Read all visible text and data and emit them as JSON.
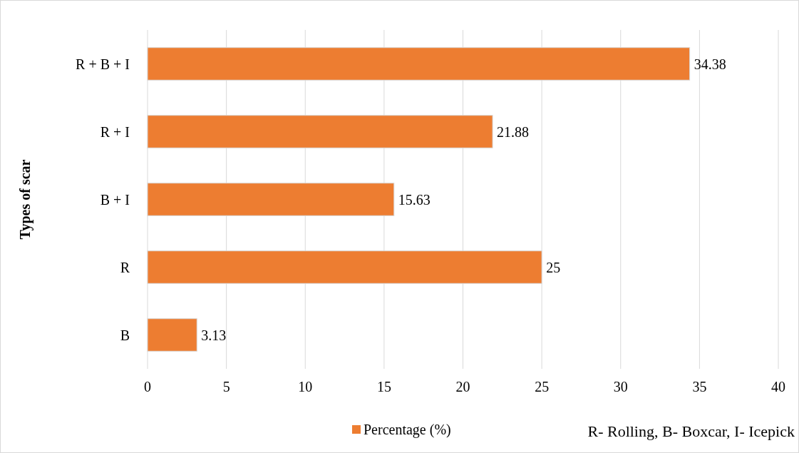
{
  "chart_data": {
    "type": "bar",
    "orientation": "horizontal",
    "ylabel": "Types of scar",
    "categories": [
      "R + B + I",
      "R + I",
      "B + I",
      "R",
      "B"
    ],
    "series": [
      {
        "name": "Percentage (%)",
        "color": "#ed7d31",
        "values": [
          34.38,
          21.88,
          15.63,
          25,
          3.13
        ]
      }
    ],
    "data_labels": true,
    "xlim": [
      0,
      40
    ],
    "xticks": [
      0,
      5,
      10,
      15,
      20,
      25,
      30,
      35,
      40
    ],
    "grid": "x",
    "legend": "bottom",
    "annotations": [
      "R- Rolling, B- Boxcar, I- Icepick"
    ]
  }
}
